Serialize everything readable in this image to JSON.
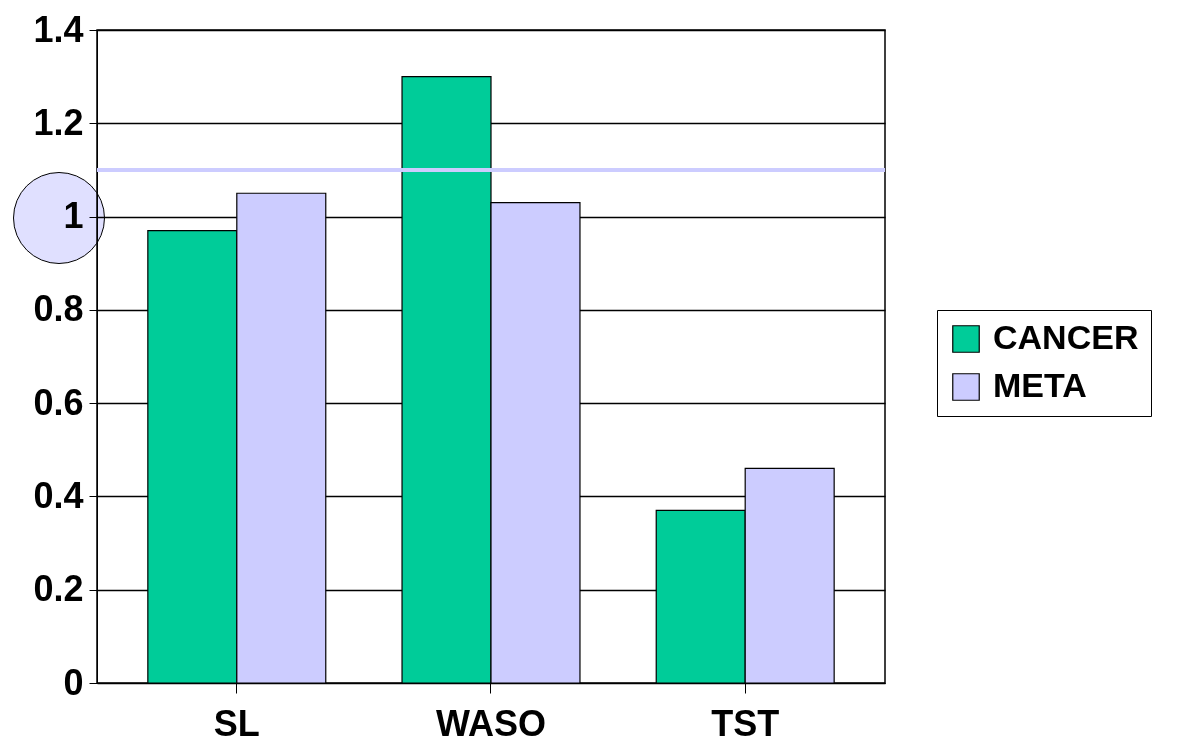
{
  "chart_data": {
    "type": "bar",
    "categories": [
      "SL",
      "WASO",
      "TST"
    ],
    "series": [
      {
        "name": "CANCER",
        "color": "#00cc99",
        "values": [
          0.97,
          1.3,
          0.37
        ]
      },
      {
        "name": "META",
        "color": "#ccccff",
        "values": [
          1.05,
          1.03,
          0.46
        ]
      }
    ],
    "ylim": [
      0,
      1.4
    ],
    "yticks": [
      0,
      0.2,
      0.4,
      0.6,
      0.8,
      1,
      1.2,
      1.4
    ],
    "grid": "y",
    "legend": "right",
    "ref_lines": [
      {
        "axis": "y",
        "value": 1.1,
        "color": "#ccccff"
      }
    ]
  }
}
